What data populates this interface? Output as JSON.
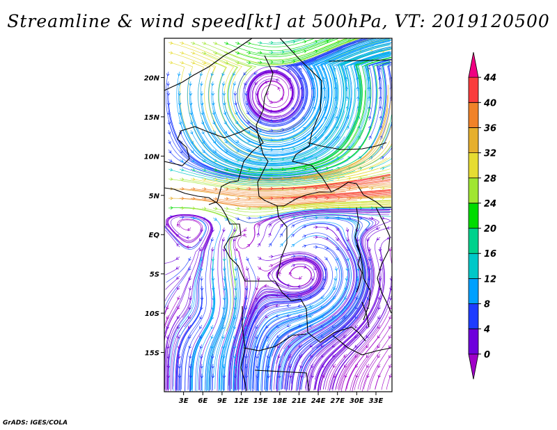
{
  "title": "Streamline & wind speed[kt] at 500hPa, VT: 2019120500",
  "footer": "GrADS: IGES/COLA",
  "map": {
    "lon_range": [
      0,
      35.5
    ],
    "lat_range": [
      -20,
      25
    ],
    "lat_ticks": [
      {
        "value": 20,
        "label": "20N"
      },
      {
        "value": 15,
        "label": "15N"
      },
      {
        "value": 10,
        "label": "10N"
      },
      {
        "value": 5,
        "label": "5N"
      },
      {
        "value": 0,
        "label": "EQ"
      },
      {
        "value": -5,
        "label": "5S"
      },
      {
        "value": -10,
        "label": "10S"
      },
      {
        "value": -15,
        "label": "15S"
      }
    ],
    "lon_ticks": [
      {
        "value": 3,
        "label": "3E"
      },
      {
        "value": 6,
        "label": "6E"
      },
      {
        "value": 9,
        "label": "9E"
      },
      {
        "value": 12,
        "label": "12E"
      },
      {
        "value": 15,
        "label": "15E"
      },
      {
        "value": 18,
        "label": "18E"
      },
      {
        "value": 21,
        "label": "21E"
      },
      {
        "value": 24,
        "label": "24E"
      },
      {
        "value": 27,
        "label": "27E"
      },
      {
        "value": 30,
        "label": "30E"
      },
      {
        "value": 33,
        "label": "33E"
      }
    ]
  },
  "colorbar": {
    "levels": [
      "0",
      "4",
      "8",
      "12",
      "16",
      "20",
      "24",
      "28",
      "32",
      "36",
      "40",
      "44"
    ],
    "colors": [
      "#a000c8",
      "#6e00dc",
      "#1e3cff",
      "#00a0ff",
      "#00c8c8",
      "#00d28c",
      "#00dc00",
      "#a0e632",
      "#e6dc32",
      "#e6af2d",
      "#f08228",
      "#fa3c3c",
      "#f00082"
    ]
  }
}
